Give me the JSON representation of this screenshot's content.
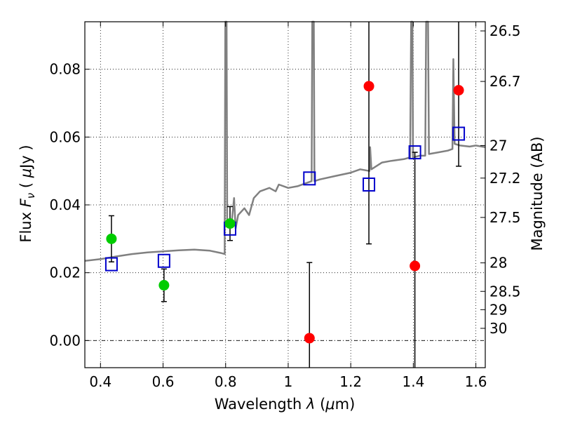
{
  "chart_data": {
    "type": "scatter",
    "xlabel_parts": [
      "Wavelength  ",
      "λ",
      " (",
      "μ",
      "m)"
    ],
    "ylabel_parts": [
      "Flux  ",
      "F",
      "ν",
      "  ( ",
      "μ",
      "Jy )"
    ],
    "y2label": "Magnitude (AB)",
    "xlim": [
      0.35,
      1.63
    ],
    "ylim": [
      -0.008,
      0.094
    ],
    "x_ticks": [
      0.4,
      0.6,
      0.8,
      1.0,
      1.2,
      1.4,
      1.6
    ],
    "x_tick_labels": [
      "0.4",
      "0.6",
      "0.8",
      "1",
      "1.2",
      "1.4",
      "1.6"
    ],
    "y_ticks": [
      0.0,
      0.02,
      0.04,
      0.06,
      0.08
    ],
    "y_tick_labels": [
      "0.00",
      "0.02",
      "0.04",
      "0.06",
      "0.08"
    ],
    "mag_ticks": [
      {
        "label": "26.5",
        "y": 0.0913
      },
      {
        "label": "26.7",
        "y": 0.0764
      },
      {
        "label": "27",
        "y": 0.0575
      },
      {
        "label": "27.2",
        "y": 0.0479
      },
      {
        "label": "27.5",
        "y": 0.0363
      },
      {
        "label": "28",
        "y": 0.0229
      },
      {
        "label": "28.5",
        "y": 0.0145
      },
      {
        "label": "29",
        "y": 0.0091
      },
      {
        "label": "30",
        "y": 0.0036
      }
    ],
    "grid": true,
    "zero_line": 0.0,
    "colors": {
      "spectrum": "#808080",
      "green_points": "#00cc00",
      "red_points": "#ff0000",
      "model_squares": "#0000cc",
      "error_bars": "#000000"
    },
    "series": [
      {
        "type": "line",
        "points": [
          [
            0.35,
            0.0235
          ],
          [
            0.4,
            0.024
          ],
          [
            0.45,
            0.0248
          ],
          [
            0.5,
            0.0255
          ],
          [
            0.55,
            0.026
          ],
          [
            0.6,
            0.0263
          ],
          [
            0.65,
            0.0266
          ],
          [
            0.7,
            0.0268
          ],
          [
            0.75,
            0.0265
          ],
          [
            0.785,
            0.0258
          ],
          [
            0.797,
            0.0255
          ],
          [
            0.799,
            0.094
          ],
          [
            0.803,
            0.094
          ],
          [
            0.805,
            0.0345
          ],
          [
            0.82,
            0.0355
          ],
          [
            0.827,
            0.042
          ],
          [
            0.832,
            0.033
          ],
          [
            0.84,
            0.037
          ],
          [
            0.86,
            0.039
          ],
          [
            0.875,
            0.037
          ],
          [
            0.89,
            0.042
          ],
          [
            0.91,
            0.044
          ],
          [
            0.94,
            0.045
          ],
          [
            0.96,
            0.044
          ],
          [
            0.97,
            0.046
          ],
          [
            1.0,
            0.045
          ],
          [
            1.03,
            0.0455
          ],
          [
            1.06,
            0.0465
          ],
          [
            1.075,
            0.047
          ],
          [
            1.077,
            0.094
          ],
          [
            1.082,
            0.094
          ],
          [
            1.084,
            0.047
          ],
          [
            1.1,
            0.0475
          ],
          [
            1.15,
            0.0485
          ],
          [
            1.2,
            0.0495
          ],
          [
            1.23,
            0.0505
          ],
          [
            1.26,
            0.05
          ],
          [
            1.262,
            0.057
          ],
          [
            1.266,
            0.0505
          ],
          [
            1.3,
            0.0525
          ],
          [
            1.33,
            0.053
          ],
          [
            1.37,
            0.0535
          ],
          [
            1.39,
            0.054
          ],
          [
            1.393,
            0.094
          ],
          [
            1.397,
            0.094
          ],
          [
            1.399,
            0.054
          ],
          [
            1.42,
            0.0545
          ],
          [
            1.438,
            0.0545
          ],
          [
            1.441,
            0.094
          ],
          [
            1.447,
            0.094
          ],
          [
            1.45,
            0.055
          ],
          [
            1.48,
            0.0555
          ],
          [
            1.51,
            0.056
          ],
          [
            1.525,
            0.0565
          ],
          [
            1.528,
            0.083
          ],
          [
            1.532,
            0.058
          ],
          [
            1.55,
            0.0575
          ],
          [
            1.58,
            0.0572
          ],
          [
            1.6,
            0.0575
          ],
          [
            1.63,
            0.057
          ]
        ]
      },
      {
        "type": "points",
        "marker": "circle",
        "points": [
          {
            "x": 0.435,
            "y": 0.03,
            "err": 0.0068
          },
          {
            "x": 0.603,
            "y": 0.0163,
            "err": 0.0048
          },
          {
            "x": 0.814,
            "y": 0.0345,
            "err": 0.005
          }
        ]
      },
      {
        "type": "points",
        "marker": "circle",
        "points": [
          {
            "x": 1.068,
            "y": 0.0007,
            "err": 0.0223
          },
          {
            "x": 1.258,
            "y": 0.075,
            "err": 0.0465
          },
          {
            "x": 1.405,
            "y": 0.022,
            "err": 0.0335
          },
          {
            "x": 1.545,
            "y": 0.0738,
            "err": 0.0224
          }
        ]
      },
      {
        "type": "points",
        "marker": "square",
        "points": [
          {
            "x": 0.435,
            "y": 0.0225
          },
          {
            "x": 0.603,
            "y": 0.0235
          },
          {
            "x": 0.814,
            "y": 0.033
          },
          {
            "x": 1.068,
            "y": 0.0478
          },
          {
            "x": 1.258,
            "y": 0.046
          },
          {
            "x": 1.405,
            "y": 0.0555
          },
          {
            "x": 1.545,
            "y": 0.061
          }
        ]
      }
    ]
  }
}
